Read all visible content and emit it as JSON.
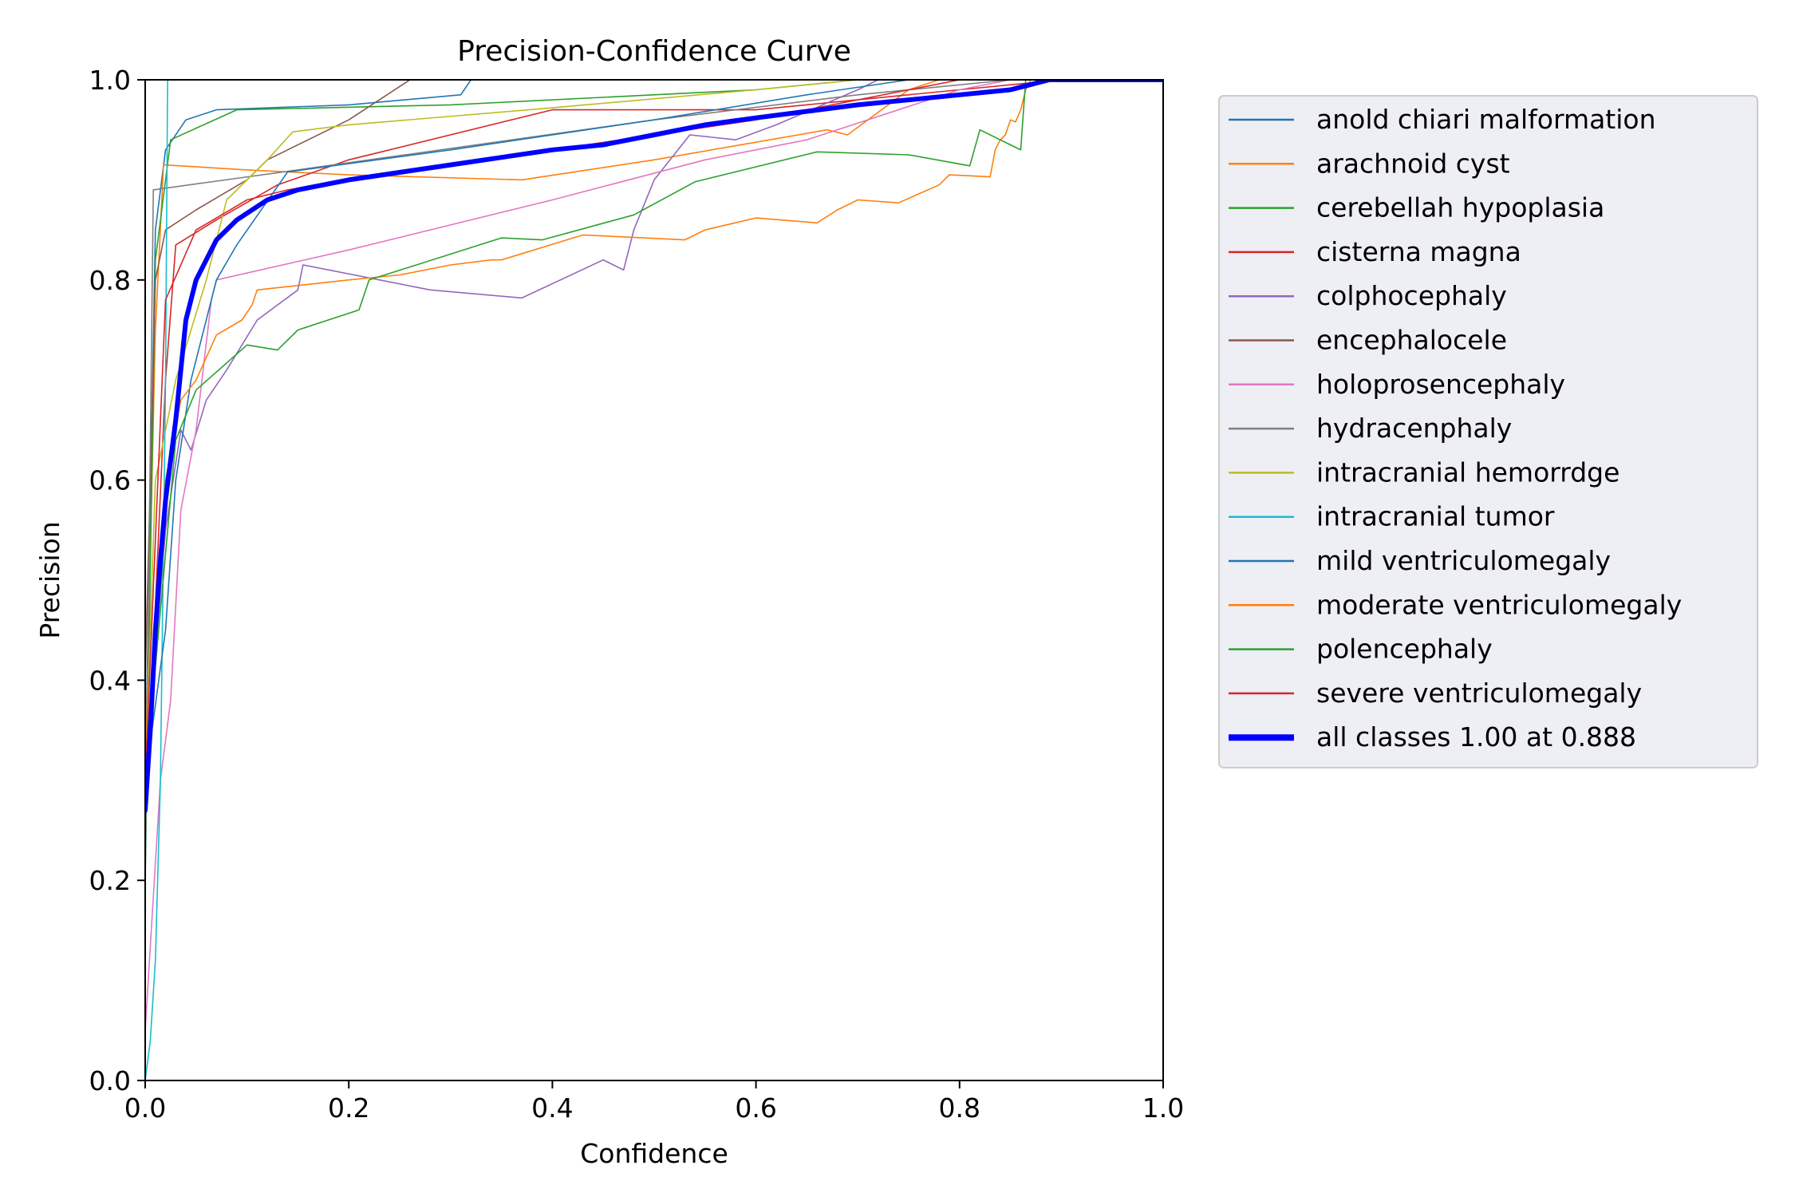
{
  "chart_data": {
    "type": "line",
    "title": "Precision-Confidence Curve",
    "xlabel": "Confidence",
    "ylabel": "Precision",
    "xlim": [
      0,
      1
    ],
    "ylim": [
      0,
      1
    ],
    "xticks": [
      "0.0",
      "0.2",
      "0.4",
      "0.6",
      "0.8",
      "1.0"
    ],
    "yticks": [
      "0.0",
      "0.2",
      "0.4",
      "0.6",
      "0.8",
      "1.0"
    ],
    "grid": false,
    "legend_position": "outside-right",
    "series": [
      {
        "name": "anold chiari malformation",
        "color": "#1f77b4",
        "width": 1.6,
        "points": [
          [
            0,
            0.3
          ],
          [
            0.01,
            0.85
          ],
          [
            0.02,
            0.93
          ],
          [
            0.04,
            0.96
          ],
          [
            0.07,
            0.97
          ],
          [
            0.2,
            0.975
          ],
          [
            0.31,
            0.985
          ],
          [
            0.32,
            1.0
          ],
          [
            1,
            1
          ]
        ]
      },
      {
        "name": "arachnoid cyst",
        "color": "#ff7f0e",
        "width": 1.6,
        "points": [
          [
            0,
            0.3
          ],
          [
            0.01,
            0.75
          ],
          [
            0.018,
            0.915
          ],
          [
            0.1,
            0.91
          ],
          [
            0.2,
            0.905
          ],
          [
            0.37,
            0.9
          ],
          [
            0.5,
            0.92
          ],
          [
            0.67,
            0.95
          ],
          [
            0.69,
            0.945
          ],
          [
            0.75,
            0.99
          ],
          [
            0.78,
            1.0
          ],
          [
            1,
            1
          ]
        ]
      },
      {
        "name": "cerebellah hypoplasia",
        "color": "#2ca02c",
        "width": 1.6,
        "points": [
          [
            0,
            0.2
          ],
          [
            0.01,
            0.82
          ],
          [
            0.025,
            0.94
          ],
          [
            0.09,
            0.97
          ],
          [
            0.3,
            0.975
          ],
          [
            0.6,
            0.99
          ],
          [
            0.7,
            1.0
          ],
          [
            1,
            1
          ]
        ]
      },
      {
        "name": "cisterna magna",
        "color": "#d62728",
        "width": 1.6,
        "points": [
          [
            0,
            0.25
          ],
          [
            0.02,
            0.7
          ],
          [
            0.03,
            0.835
          ],
          [
            0.07,
            0.86
          ],
          [
            0.13,
            0.895
          ],
          [
            0.2,
            0.92
          ],
          [
            0.4,
            0.97
          ],
          [
            0.6,
            0.97
          ],
          [
            0.8,
            0.99
          ],
          [
            0.9,
            1.0
          ],
          [
            1,
            1
          ]
        ]
      },
      {
        "name": "colphocephaly",
        "color": "#9467bd",
        "width": 1.6,
        "points": [
          [
            0,
            0.3
          ],
          [
            0.02,
            0.55
          ],
          [
            0.035,
            0.65
          ],
          [
            0.045,
            0.63
          ],
          [
            0.06,
            0.68
          ],
          [
            0.08,
            0.71
          ],
          [
            0.11,
            0.76
          ],
          [
            0.15,
            0.79
          ],
          [
            0.155,
            0.815
          ],
          [
            0.28,
            0.79
          ],
          [
            0.37,
            0.782
          ],
          [
            0.45,
            0.82
          ],
          [
            0.47,
            0.81
          ],
          [
            0.48,
            0.85
          ],
          [
            0.5,
            0.9
          ],
          [
            0.535,
            0.945
          ],
          [
            0.58,
            0.94
          ],
          [
            0.62,
            0.955
          ],
          [
            0.7,
            0.99
          ],
          [
            0.72,
            1.0
          ],
          [
            1,
            1
          ]
        ]
      },
      {
        "name": "encephalocele",
        "color": "#8c564b",
        "width": 1.6,
        "points": [
          [
            0,
            0.4
          ],
          [
            0.01,
            0.8
          ],
          [
            0.02,
            0.85
          ],
          [
            0.05,
            0.87
          ],
          [
            0.1,
            0.9
          ],
          [
            0.12,
            0.92
          ],
          [
            0.2,
            0.96
          ],
          [
            0.26,
            1.0
          ],
          [
            1,
            1
          ]
        ]
      },
      {
        "name": "holoprosencephaly",
        "color": "#e377c2",
        "width": 1.6,
        "points": [
          [
            0,
            0.05
          ],
          [
            0.015,
            0.3
          ],
          [
            0.025,
            0.38
          ],
          [
            0.035,
            0.57
          ],
          [
            0.05,
            0.65
          ],
          [
            0.065,
            0.78
          ],
          [
            0.07,
            0.8
          ],
          [
            0.2,
            0.83
          ],
          [
            0.4,
            0.88
          ],
          [
            0.55,
            0.92
          ],
          [
            0.65,
            0.94
          ],
          [
            0.8,
            0.99
          ],
          [
            0.85,
            1.0
          ],
          [
            1,
            1
          ]
        ]
      },
      {
        "name": "hydracenphaly",
        "color": "#7f7f7f",
        "width": 1.6,
        "points": [
          [
            0,
            0.2
          ],
          [
            0.008,
            0.89
          ],
          [
            0.15,
            0.91
          ],
          [
            0.5,
            0.96
          ],
          [
            0.7,
            0.985
          ],
          [
            0.85,
            1.0
          ],
          [
            1,
            1
          ]
        ]
      },
      {
        "name": "intracranial hemorrdge",
        "color": "#bcbd22",
        "width": 1.6,
        "points": [
          [
            0,
            0.3
          ],
          [
            0.01,
            0.6
          ],
          [
            0.03,
            0.7
          ],
          [
            0.06,
            0.8
          ],
          [
            0.08,
            0.88
          ],
          [
            0.12,
            0.92
          ],
          [
            0.145,
            0.948
          ],
          [
            0.2,
            0.955
          ],
          [
            0.4,
            0.972
          ],
          [
            0.6,
            0.99
          ],
          [
            0.7,
            1.0
          ],
          [
            1,
            1
          ]
        ]
      },
      {
        "name": "intracranial tumor",
        "color": "#17becf",
        "width": 1.6,
        "points": [
          [
            0,
            0.0
          ],
          [
            0.005,
            0.04
          ],
          [
            0.01,
            0.12
          ],
          [
            0.015,
            0.3
          ],
          [
            0.02,
            0.7
          ],
          [
            0.022,
            1.0
          ],
          [
            1,
            1
          ]
        ]
      },
      {
        "name": "mild ventriculomegaly",
        "color": "#1f77b4",
        "width": 1.6,
        "points": [
          [
            0,
            0.3
          ],
          [
            0.02,
            0.45
          ],
          [
            0.03,
            0.6
          ],
          [
            0.045,
            0.7
          ],
          [
            0.07,
            0.8
          ],
          [
            0.09,
            0.835
          ],
          [
            0.14,
            0.908
          ],
          [
            0.3,
            0.93
          ],
          [
            0.5,
            0.96
          ],
          [
            0.65,
            0.985
          ],
          [
            0.75,
            1.0
          ],
          [
            1,
            1
          ]
        ]
      },
      {
        "name": "moderate ventriculomegaly",
        "color": "#ff7f0e",
        "width": 1.6,
        "points": [
          [
            0,
            0.3
          ],
          [
            0.02,
            0.6
          ],
          [
            0.035,
            0.68
          ],
          [
            0.05,
            0.7
          ],
          [
            0.07,
            0.745
          ],
          [
            0.095,
            0.76
          ],
          [
            0.105,
            0.775
          ],
          [
            0.11,
            0.79
          ],
          [
            0.2,
            0.8
          ],
          [
            0.25,
            0.805
          ],
          [
            0.3,
            0.815
          ],
          [
            0.34,
            0.82
          ],
          [
            0.35,
            0.82
          ],
          [
            0.43,
            0.845
          ],
          [
            0.53,
            0.84
          ],
          [
            0.55,
            0.85
          ],
          [
            0.6,
            0.862
          ],
          [
            0.66,
            0.857
          ],
          [
            0.68,
            0.87
          ],
          [
            0.7,
            0.88
          ],
          [
            0.74,
            0.877
          ],
          [
            0.78,
            0.895
          ],
          [
            0.79,
            0.905
          ],
          [
            0.83,
            0.903
          ],
          [
            0.835,
            0.93
          ],
          [
            0.84,
            0.94
          ],
          [
            0.845,
            0.945
          ],
          [
            0.85,
            0.96
          ],
          [
            0.855,
            0.958
          ],
          [
            0.86,
            0.97
          ],
          [
            0.865,
            0.99
          ],
          [
            0.87,
            1.0
          ],
          [
            1,
            1
          ]
        ]
      },
      {
        "name": "polencephaly",
        "color": "#2ca02c",
        "width": 1.6,
        "points": [
          [
            0,
            0.3
          ],
          [
            0.03,
            0.64
          ],
          [
            0.05,
            0.69
          ],
          [
            0.1,
            0.735
          ],
          [
            0.13,
            0.73
          ],
          [
            0.15,
            0.75
          ],
          [
            0.21,
            0.77
          ],
          [
            0.22,
            0.8
          ],
          [
            0.35,
            0.842
          ],
          [
            0.39,
            0.84
          ],
          [
            0.48,
            0.865
          ],
          [
            0.54,
            0.898
          ],
          [
            0.66,
            0.928
          ],
          [
            0.75,
            0.925
          ],
          [
            0.81,
            0.914
          ],
          [
            0.82,
            0.95
          ],
          [
            0.86,
            0.93
          ],
          [
            0.865,
            1.0
          ],
          [
            1,
            1
          ]
        ]
      },
      {
        "name": "severe ventriculomegaly",
        "color": "#d62728",
        "width": 1.6,
        "points": [
          [
            0,
            0.3
          ],
          [
            0.02,
            0.78
          ],
          [
            0.05,
            0.85
          ],
          [
            0.1,
            0.88
          ],
          [
            0.14,
            0.89
          ],
          [
            0.2,
            0.9
          ],
          [
            0.4,
            0.93
          ],
          [
            0.6,
            0.96
          ],
          [
            0.7,
            0.98
          ],
          [
            0.8,
            1.0
          ],
          [
            1,
            1
          ]
        ]
      },
      {
        "name": "all classes 1.00 at 0.888",
        "color": "#0000ff",
        "width": 6,
        "points": [
          [
            0,
            0.27
          ],
          [
            0.005,
            0.35
          ],
          [
            0.01,
            0.45
          ],
          [
            0.015,
            0.52
          ],
          [
            0.02,
            0.58
          ],
          [
            0.03,
            0.66
          ],
          [
            0.04,
            0.76
          ],
          [
            0.05,
            0.8
          ],
          [
            0.07,
            0.84
          ],
          [
            0.09,
            0.86
          ],
          [
            0.12,
            0.88
          ],
          [
            0.15,
            0.89
          ],
          [
            0.2,
            0.9
          ],
          [
            0.3,
            0.915
          ],
          [
            0.4,
            0.93
          ],
          [
            0.45,
            0.935
          ],
          [
            0.5,
            0.945
          ],
          [
            0.55,
            0.955
          ],
          [
            0.6,
            0.962
          ],
          [
            0.7,
            0.975
          ],
          [
            0.8,
            0.985
          ],
          [
            0.85,
            0.99
          ],
          [
            0.888,
            1.0
          ],
          [
            1,
            1
          ]
        ]
      }
    ]
  }
}
